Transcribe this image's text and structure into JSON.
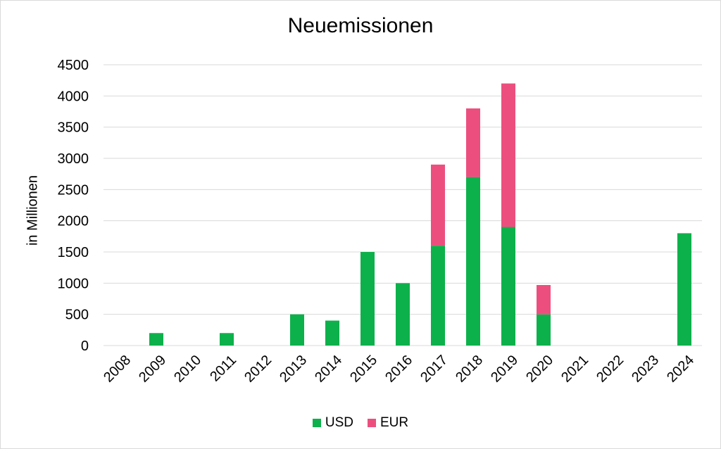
{
  "chart_data": {
    "type": "bar",
    "stacked": true,
    "title": "Neuemissionen",
    "xlabel": "",
    "ylabel": "in Millionen",
    "ylim": [
      0,
      4500
    ],
    "yticks": [
      0,
      500,
      1000,
      1500,
      2000,
      2500,
      3000,
      3500,
      4000,
      4500
    ],
    "grid": true,
    "legend_position": "bottom",
    "categories": [
      "2008",
      "2009",
      "2010",
      "2011",
      "2012",
      "2013",
      "2014",
      "2015",
      "2016",
      "2017",
      "2018",
      "2019",
      "2020",
      "2021",
      "2022",
      "2023",
      "2024"
    ],
    "series": [
      {
        "name": "USD",
        "color": "#0db14b",
        "values": [
          0,
          200,
          0,
          200,
          0,
          500,
          400,
          1500,
          1000,
          1600,
          2700,
          1900,
          500,
          0,
          0,
          0,
          1800
        ]
      },
      {
        "name": "EUR",
        "color": "#ec4f7e",
        "values": [
          0,
          0,
          0,
          0,
          0,
          0,
          0,
          0,
          0,
          1300,
          1100,
          2300,
          470,
          0,
          0,
          0,
          0
        ]
      }
    ]
  }
}
